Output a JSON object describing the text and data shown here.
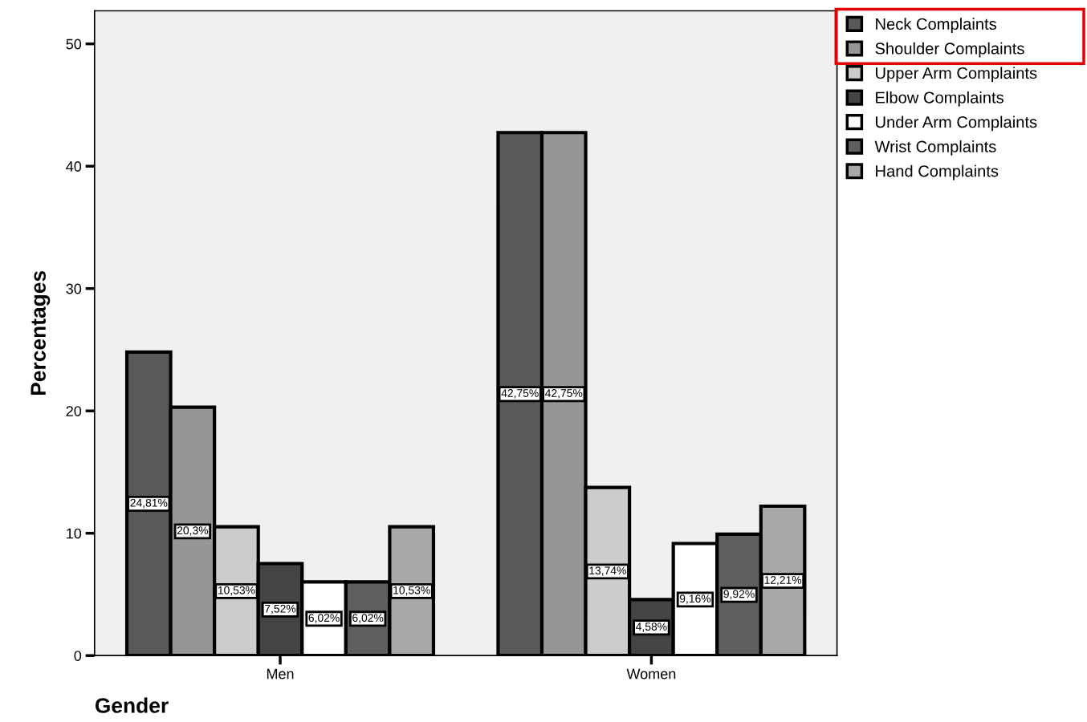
{
  "chart_data": {
    "type": "bar",
    "xlabel": "Gender",
    "ylabel": "Percentages",
    "categories": [
      "Men",
      "Women"
    ],
    "series": [
      {
        "name": "Neck Complaints",
        "color": "#595959",
        "values": [
          24.81,
          42.75
        ],
        "value_labels": [
          "24,81%",
          "42,75%"
        ]
      },
      {
        "name": "Shoulder Complaints",
        "color": "#969696",
        "values": [
          20.3,
          42.75
        ],
        "value_labels": [
          "20,3%",
          "42,75%"
        ]
      },
      {
        "name": "Upper Arm Complaints",
        "color": "#cccccc",
        "values": [
          10.53,
          13.74
        ],
        "value_labels": [
          "10,53%",
          "13,74%"
        ]
      },
      {
        "name": "Elbow Complaints",
        "color": "#444444",
        "values": [
          7.52,
          4.58
        ],
        "value_labels": [
          "7,52%",
          "4,58%"
        ]
      },
      {
        "name": "Under Arm Complaints",
        "color": "#ffffff",
        "values": [
          6.02,
          9.16
        ],
        "value_labels": [
          "6,02%",
          "9,16%"
        ]
      },
      {
        "name": "Wrist Complaints",
        "color": "#5f5f5f",
        "values": [
          6.02,
          9.92
        ],
        "value_labels": [
          "6,02%",
          "9,92%"
        ]
      },
      {
        "name": "Hand Complaints",
        "color": "#a8a8a8",
        "values": [
          10.53,
          12.21
        ],
        "value_labels": [
          "10,53%",
          "12,21%"
        ]
      }
    ],
    "ylim": [
      0,
      52.7
    ],
    "yticks": [
      0,
      10,
      20,
      30,
      40,
      50
    ],
    "grid": false,
    "legend": "top right"
  }
}
